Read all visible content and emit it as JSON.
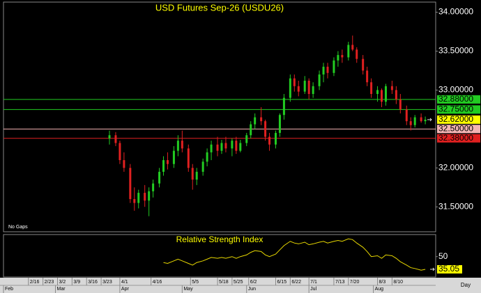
{
  "chart_data": {
    "type": "candlestick",
    "title": "USD Futures Sep-26 (USDU26)",
    "note": "No Gaps",
    "x_unit": "Day",
    "xlim": [
      "2/4",
      "8/31"
    ],
    "xticks": [
      "2/16",
      "2/23",
      "3/2",
      "3/9",
      "3/16",
      "3/23",
      "4/1",
      "4/16",
      "5/5",
      "5/18",
      "5/25",
      "6/2",
      "6/15",
      "6/22",
      "7/1",
      "7/13",
      "7/20",
      "8/3",
      "8/10"
    ],
    "months": [
      {
        "value": "2/4",
        "label": "Feb"
      },
      {
        "value": "3/1",
        "label": "Mar"
      },
      {
        "value": "4/1",
        "label": "Apr"
      },
      {
        "value": "5/1",
        "label": "May"
      },
      {
        "value": "6/1",
        "label": "Jun"
      },
      {
        "value": "7/1",
        "label": "Jul"
      },
      {
        "value": "8/1",
        "label": "Aug"
      }
    ],
    "ylim": [
      31.18,
      34.13
    ],
    "yticks": [
      {
        "value": 31.5,
        "label": "31.50000"
      },
      {
        "value": 32,
        "label": "32.00000"
      },
      {
        "value": 33,
        "label": "33.00000"
      },
      {
        "value": 33.5,
        "label": "33.50000"
      },
      {
        "value": 34,
        "label": "34.00000"
      }
    ],
    "up_color": "#22cc22",
    "down_color": "#e02020",
    "x": [
      "3/27",
      "3/30",
      "4/1",
      "4/3",
      "4/6",
      "4/8",
      "4/10",
      "4/13",
      "4/15",
      "4/17",
      "4/20",
      "4/22",
      "4/24",
      "4/27",
      "4/29",
      "5/1",
      "5/4",
      "5/6",
      "5/8",
      "5/11",
      "5/13",
      "5/15",
      "5/18",
      "5/20",
      "5/22",
      "5/25",
      "5/27",
      "5/29",
      "6/1",
      "6/3",
      "6/5",
      "6/8",
      "6/10",
      "6/12",
      "6/15",
      "6/17",
      "6/19",
      "6/22",
      "6/24",
      "6/26",
      "6/29",
      "7/1",
      "7/3",
      "7/6",
      "7/8",
      "7/10",
      "7/13",
      "7/15",
      "7/17",
      "7/20",
      "7/22",
      "7/24",
      "7/27",
      "7/29",
      "7/31",
      "8/3",
      "8/5",
      "8/7",
      "8/10",
      "8/12",
      "8/14",
      "8/17",
      "8/19",
      "8/21",
      "8/24",
      "8/26"
    ],
    "ohlc": [
      [
        32.38,
        32.48,
        32.3,
        32.42
      ],
      [
        32.42,
        32.46,
        32.28,
        32.32
      ],
      [
        32.32,
        32.35,
        32.05,
        32.1
      ],
      [
        32.1,
        32.2,
        31.95,
        32.0
      ],
      [
        32.0,
        32.05,
        31.55,
        31.6
      ],
      [
        31.6,
        31.75,
        31.45,
        31.55
      ],
      [
        31.55,
        31.72,
        31.48,
        31.68
      ],
      [
        31.68,
        31.78,
        31.5,
        31.58
      ],
      [
        31.58,
        31.75,
        31.38,
        31.7
      ],
      [
        31.7,
        31.85,
        31.62,
        31.8
      ],
      [
        31.8,
        32.0,
        31.75,
        31.95
      ],
      [
        31.95,
        32.15,
        31.9,
        32.1
      ],
      [
        32.1,
        32.2,
        31.98,
        32.05
      ],
      [
        32.05,
        32.28,
        32.0,
        32.22
      ],
      [
        32.22,
        32.42,
        32.15,
        32.35
      ],
      [
        32.35,
        32.48,
        32.2,
        32.25
      ],
      [
        32.25,
        32.3,
        31.95,
        32.0
      ],
      [
        32.0,
        32.05,
        31.72,
        31.85
      ],
      [
        31.85,
        32.0,
        31.78,
        31.95
      ],
      [
        31.95,
        32.12,
        31.9,
        32.08
      ],
      [
        32.08,
        32.25,
        32.02,
        32.2
      ],
      [
        32.2,
        32.35,
        32.1,
        32.3
      ],
      [
        32.3,
        32.4,
        32.15,
        32.22
      ],
      [
        32.22,
        32.36,
        32.18,
        32.32
      ],
      [
        32.32,
        32.4,
        32.2,
        32.25
      ],
      [
        32.25,
        32.38,
        32.15,
        32.35
      ],
      [
        32.35,
        32.4,
        32.18,
        32.22
      ],
      [
        32.22,
        32.36,
        32.2,
        32.32
      ],
      [
        32.32,
        32.45,
        32.28,
        32.42
      ],
      [
        32.42,
        32.6,
        32.38,
        32.56
      ],
      [
        32.56,
        32.7,
        32.5,
        32.65
      ],
      [
        32.65,
        32.78,
        32.55,
        32.6
      ],
      [
        32.6,
        32.62,
        32.35,
        32.4
      ],
      [
        32.4,
        32.45,
        32.22,
        32.3
      ],
      [
        32.3,
        32.48,
        32.25,
        32.45
      ],
      [
        32.45,
        32.7,
        32.4,
        32.68
      ],
      [
        32.68,
        32.95,
        32.62,
        32.9
      ],
      [
        32.9,
        33.2,
        32.85,
        33.15
      ],
      [
        33.15,
        33.2,
        32.98,
        33.05
      ],
      [
        33.05,
        33.12,
        32.92,
        32.98
      ],
      [
        32.98,
        33.18,
        32.95,
        33.12
      ],
      [
        33.12,
        33.15,
        32.88,
        32.95
      ],
      [
        32.95,
        33.1,
        32.9,
        33.05
      ],
      [
        33.05,
        33.25,
        33.0,
        33.2
      ],
      [
        33.2,
        33.35,
        33.1,
        33.3
      ],
      [
        33.3,
        33.35,
        33.15,
        33.22
      ],
      [
        33.22,
        33.42,
        33.18,
        33.38
      ],
      [
        33.38,
        33.5,
        33.3,
        33.45
      ],
      [
        33.45,
        33.52,
        33.35,
        33.42
      ],
      [
        33.42,
        33.62,
        33.38,
        33.58
      ],
      [
        33.58,
        33.7,
        33.5,
        33.52
      ],
      [
        33.52,
        33.55,
        33.35,
        33.4
      ],
      [
        33.4,
        33.45,
        33.2,
        33.25
      ],
      [
        33.25,
        33.3,
        33.05,
        33.1
      ],
      [
        33.1,
        33.15,
        32.9,
        32.95
      ],
      [
        32.95,
        33.05,
        32.85,
        33.0
      ],
      [
        33.0,
        33.02,
        32.78,
        32.85
      ],
      [
        32.85,
        33.08,
        32.8,
        33.05
      ],
      [
        33.05,
        33.12,
        32.95,
        33.0
      ],
      [
        33.0,
        33.05,
        32.82,
        32.88
      ],
      [
        32.88,
        32.95,
        32.7,
        32.75
      ],
      [
        32.75,
        32.8,
        32.55,
        32.6
      ],
      [
        32.6,
        32.65,
        32.48,
        32.55
      ],
      [
        32.55,
        32.68,
        32.52,
        32.65
      ],
      [
        32.65,
        32.7,
        32.58,
        32.6
      ],
      [
        32.6,
        32.66,
        32.56,
        32.62
      ]
    ],
    "levels": [
      {
        "value": 32.88,
        "label": "32.88000",
        "color": "#22cc22"
      },
      {
        "value": 32.75,
        "label": "32.75000",
        "color": "#22cc22"
      },
      {
        "value": 32.5,
        "label": "32.50000",
        "color": "#f4b4b4"
      },
      {
        "value": 32.38,
        "label": "32.38000",
        "color": "#e02020"
      }
    ],
    "last_price": {
      "value": 32.62,
      "label": "32.62000",
      "color": "#ffff00"
    },
    "rsi": {
      "title": "Relative Strength Index",
      "color": "#e8d800",
      "ylim": [
        26,
        76
      ],
      "yticks": [
        50
      ],
      "values": [
        null,
        null,
        null,
        null,
        null,
        null,
        null,
        null,
        null,
        null,
        null,
        43,
        42,
        45,
        47,
        45,
        42,
        40,
        43,
        45,
        47,
        49,
        48,
        49,
        48,
        50,
        48,
        50,
        52,
        55,
        57,
        56,
        52,
        50,
        53,
        58,
        63,
        68,
        66,
        65,
        67,
        64,
        65,
        67,
        68,
        66,
        68,
        69,
        68,
        71,
        70,
        66,
        61,
        56,
        50,
        51,
        48,
        52,
        51,
        48,
        44,
        40,
        37,
        36,
        34,
        35.05
      ],
      "last": {
        "value": 35.05,
        "label": "35.05"
      }
    }
  }
}
